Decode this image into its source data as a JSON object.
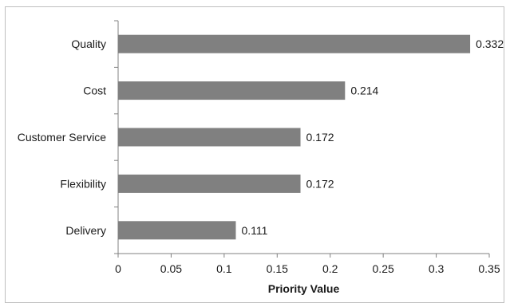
{
  "chart_data": {
    "type": "bar",
    "orientation": "horizontal",
    "categories": [
      "Quality",
      "Cost",
      "Customer Service",
      "Flexibility",
      "Delivery"
    ],
    "values": [
      0.332,
      0.214,
      0.172,
      0.172,
      0.111
    ],
    "data_labels": [
      "0.332",
      "0.214",
      "0.172",
      "0.172",
      "0.111"
    ],
    "xlabel": "Priority Value",
    "ylabel": "",
    "title": "",
    "xlim": [
      0,
      0.35
    ],
    "xticks": [
      0,
      0.05,
      0.1,
      0.15,
      0.2,
      0.25,
      0.3,
      0.35
    ],
    "xtick_labels": [
      "0",
      "0.05",
      "0.1",
      "0.15",
      "0.2",
      "0.25",
      "0.3",
      "0.35"
    ],
    "grid": false,
    "legend": "none",
    "bar_color": "#808080"
  }
}
